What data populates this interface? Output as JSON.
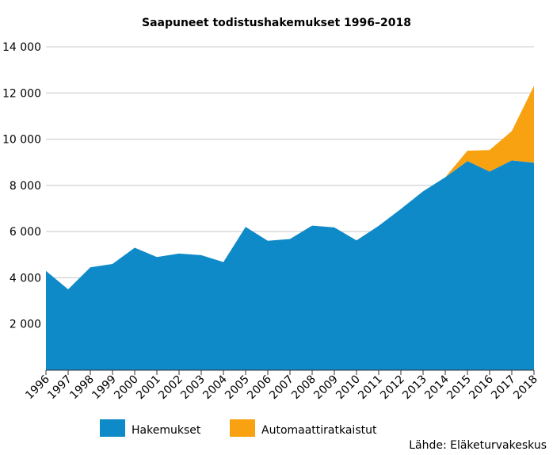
{
  "chart_data": {
    "type": "area",
    "stacked": true,
    "title": "Saapuneet todistushakemukset 1996–2018",
    "xlabel": "",
    "ylabel": "",
    "ylim": [
      0,
      14000
    ],
    "yticks": [
      0,
      2000,
      4000,
      6000,
      8000,
      10000,
      12000,
      14000
    ],
    "ytick_labels": [
      "",
      "2 000",
      "4 000",
      "6 000",
      "8 000",
      "10 000",
      "12 000",
      "14 000"
    ],
    "grid": true,
    "legend_position": "bottom",
    "categories": [
      "1996",
      "1997",
      "1998",
      "1999",
      "2000",
      "2001",
      "2002",
      "2003",
      "2004",
      "2005",
      "2006",
      "2007",
      "2008",
      "2009",
      "2010",
      "2011",
      "2012",
      "2013",
      "2014",
      "2015",
      "2016",
      "2017",
      "2018"
    ],
    "series": [
      {
        "name": "Hakemukset",
        "color": "#0f8ac9",
        "values": [
          4300,
          3500,
          4450,
          4600,
          5300,
          4900,
          5050,
          4980,
          4680,
          6200,
          5600,
          5680,
          6260,
          6180,
          5620,
          6250,
          6980,
          7740,
          8350,
          9050,
          8600,
          9080,
          8980
        ]
      },
      {
        "name": "Automaattiratkaistut",
        "color": "#f8a111",
        "values": [
          0,
          0,
          0,
          0,
          0,
          0,
          0,
          0,
          0,
          0,
          0,
          0,
          0,
          0,
          0,
          0,
          0,
          0,
          0,
          450,
          930,
          1270,
          3330
        ]
      }
    ],
    "source": "Lähde: Eläketurvakeskus"
  }
}
